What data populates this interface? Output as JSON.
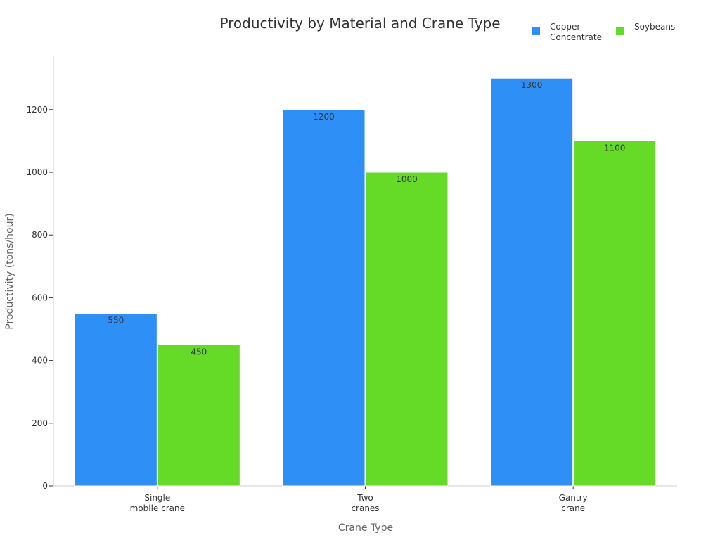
{
  "chart_data": {
    "type": "bar",
    "title": "Productivity by Material and Crane Type",
    "xlabel": "Crane Type",
    "ylabel": "Productivity (tons/hour)",
    "categories": [
      [
        "Single",
        "mobile crane"
      ],
      [
        "Two",
        "cranes"
      ],
      [
        "Gantry",
        "crane"
      ]
    ],
    "series": [
      {
        "name": [
          "Copper",
          "Concentrate"
        ],
        "color": "#2E8FF7",
        "values": [
          550,
          1200,
          1300
        ]
      },
      {
        "name": [
          "Soybeans"
        ],
        "color": "#66DB27",
        "values": [
          450,
          1000,
          1100
        ]
      }
    ],
    "ylim": [
      0,
      1370
    ],
    "yticks": [
      0,
      200,
      400,
      600,
      800,
      1000,
      1200
    ],
    "grid": false,
    "legend_position": "top-right",
    "data_labels": true
  }
}
